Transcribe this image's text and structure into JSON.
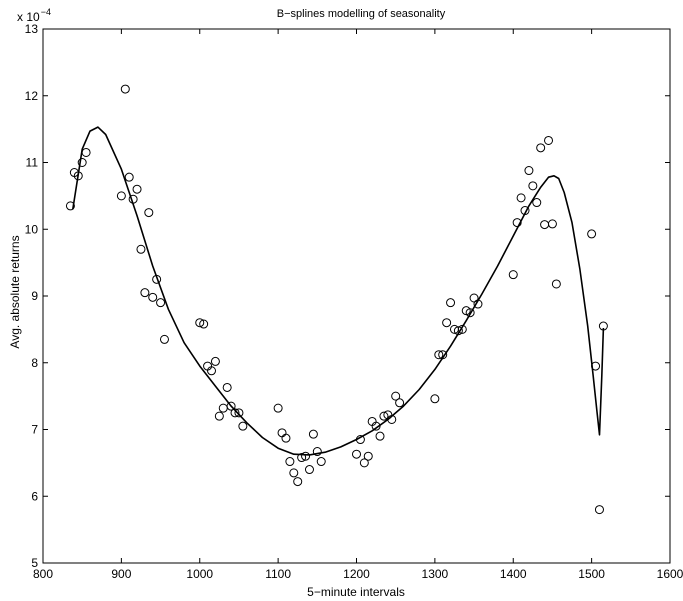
{
  "chart_data": {
    "type": "scatter",
    "title": "B−splines modelling of seasonality",
    "xlabel": "5−minute intervals",
    "ylabel": "Avg. absolute returns",
    "y_exponent_label": "x 10",
    "y_exponent_power": "−4",
    "xlim": [
      800,
      1600
    ],
    "ylim": [
      5,
      13
    ],
    "x_ticks": [
      800,
      900,
      1000,
      1100,
      1200,
      1300,
      1400,
      1500,
      1600
    ],
    "y_ticks": [
      5,
      6,
      7,
      8,
      9,
      10,
      11,
      12,
      13
    ],
    "grid": false,
    "legend": "none",
    "series": [
      {
        "kind": "markers",
        "marker": "open-circle",
        "x": [
          835,
          840,
          845,
          850,
          855,
          900,
          905,
          910,
          915,
          920,
          925,
          930,
          935,
          940,
          945,
          950,
          955,
          1000,
          1005,
          1010,
          1015,
          1020,
          1025,
          1030,
          1035,
          1040,
          1045,
          1050,
          1055,
          1100,
          1105,
          1110,
          1115,
          1120,
          1125,
          1130,
          1135,
          1140,
          1145,
          1150,
          1155,
          1200,
          1205,
          1210,
          1215,
          1220,
          1225,
          1230,
          1235,
          1240,
          1245,
          1250,
          1255,
          1300,
          1305,
          1310,
          1315,
          1320,
          1325,
          1330,
          1335,
          1340,
          1345,
          1350,
          1355,
          1400,
          1405,
          1410,
          1415,
          1420,
          1425,
          1430,
          1435,
          1440,
          1445,
          1450,
          1455,
          1500,
          1505,
          1510,
          1515
        ],
        "y": [
          10.35,
          10.85,
          10.8,
          11.0,
          11.15,
          10.5,
          12.1,
          10.78,
          10.45,
          10.6,
          9.7,
          9.05,
          10.25,
          8.98,
          9.25,
          8.9,
          8.35,
          8.6,
          8.58,
          7.95,
          7.88,
          8.02,
          7.2,
          7.32,
          7.63,
          7.35,
          7.25,
          7.25,
          7.05,
          7.32,
          6.95,
          6.87,
          6.52,
          6.35,
          6.22,
          6.58,
          6.6,
          6.4,
          6.93,
          6.67,
          6.52,
          6.63,
          6.85,
          6.5,
          6.6,
          7.12,
          7.05,
          6.9,
          7.2,
          7.22,
          7.15,
          7.5,
          7.4,
          7.46,
          8.12,
          8.12,
          8.6,
          8.9,
          8.5,
          8.48,
          8.5,
          8.78,
          8.75,
          8.97,
          8.88,
          9.32,
          10.1,
          10.47,
          10.28,
          10.88,
          10.65,
          10.4,
          11.22,
          10.07,
          11.33,
          10.08,
          9.18,
          9.93,
          7.95,
          5.8,
          8.55
        ]
      },
      {
        "kind": "line",
        "x": [
          838,
          850,
          860,
          870,
          880,
          900,
          920,
          940,
          960,
          980,
          1000,
          1020,
          1040,
          1060,
          1080,
          1100,
          1120,
          1140,
          1160,
          1180,
          1200,
          1220,
          1240,
          1260,
          1280,
          1300,
          1320,
          1340,
          1360,
          1380,
          1400,
          1420,
          1435,
          1445,
          1452,
          1458,
          1465,
          1475,
          1485,
          1495,
          1502,
          1507,
          1510,
          1513,
          1515
        ],
        "y": [
          10.3,
          11.2,
          11.47,
          11.53,
          11.42,
          10.9,
          10.2,
          9.45,
          8.8,
          8.3,
          7.95,
          7.65,
          7.35,
          7.1,
          6.88,
          6.72,
          6.63,
          6.62,
          6.66,
          6.74,
          6.85,
          6.98,
          7.15,
          7.35,
          7.6,
          7.9,
          8.25,
          8.63,
          9.03,
          9.45,
          9.9,
          10.35,
          10.63,
          10.78,
          10.8,
          10.76,
          10.55,
          10.1,
          9.4,
          8.55,
          7.8,
          7.25,
          6.92,
          7.8,
          8.52
        ]
      }
    ]
  }
}
